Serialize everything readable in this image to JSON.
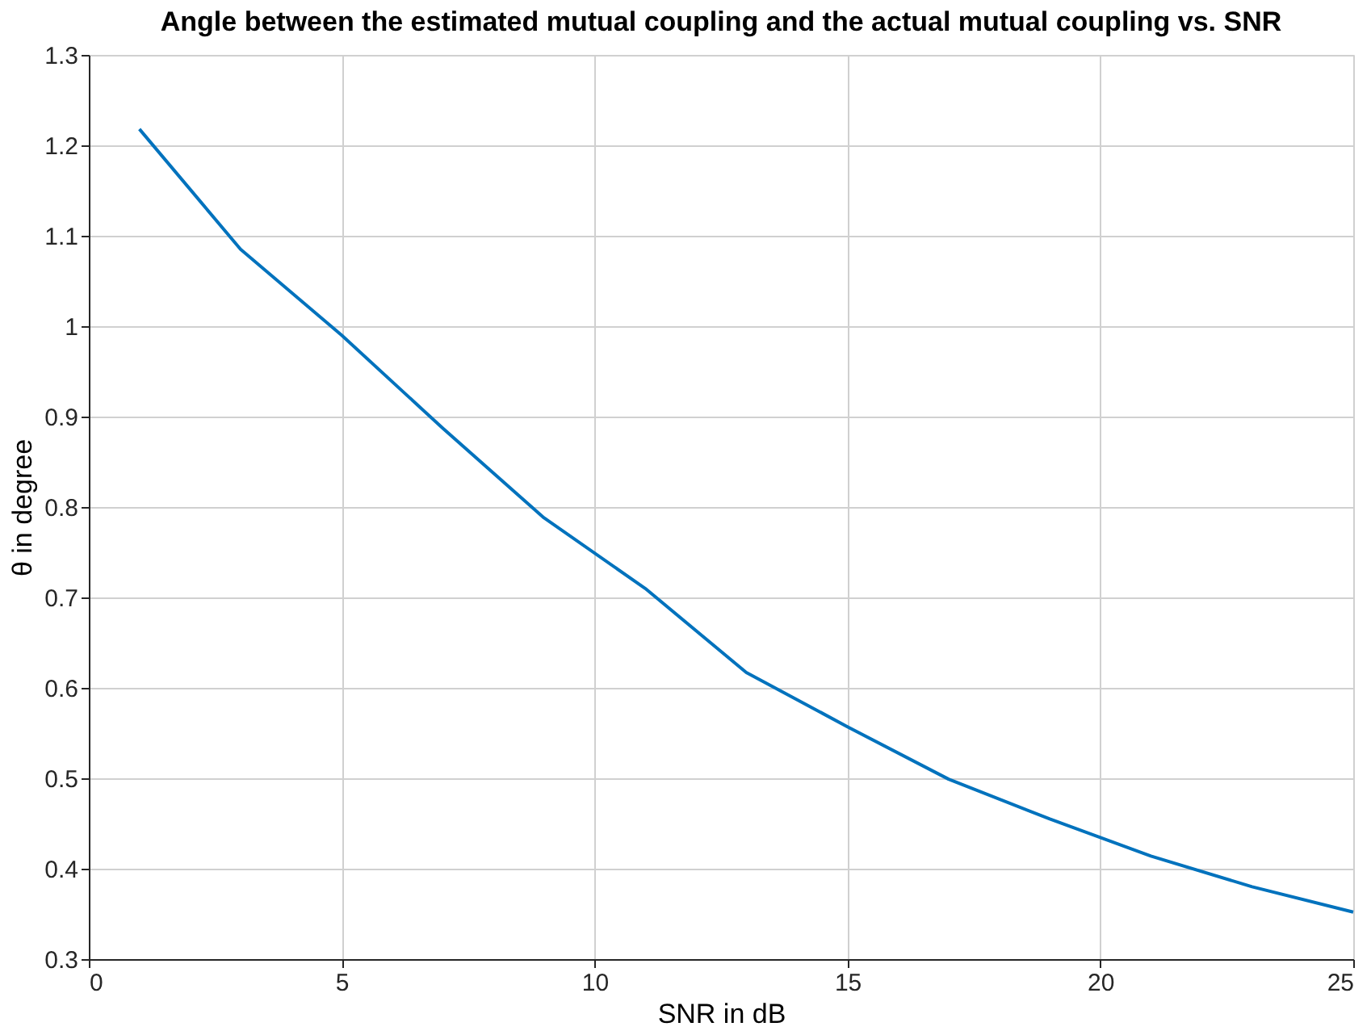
{
  "chart_data": {
    "type": "line",
    "title": "Angle between the estimated mutual coupling and the actual mutual coupling vs. SNR",
    "xlabel": "SNR in dB",
    "ylabel": "θ in degree",
    "x": [
      1,
      3,
      5,
      7,
      9,
      11,
      13,
      15,
      17,
      19,
      21,
      23,
      25
    ],
    "series": [
      {
        "color": "#0072bd",
        "values": [
          1.218,
          1.085,
          0.99,
          0.887,
          0.788,
          0.71,
          0.617,
          0.557,
          0.499,
          0.455,
          0.414,
          0.38,
          0.352
        ]
      }
    ],
    "xlim": [
      0,
      25
    ],
    "xticks": [
      0,
      5,
      10,
      15,
      20,
      25
    ],
    "ylim": [
      0.3,
      1.3
    ],
    "yticks": [
      0.3,
      0.4,
      0.5,
      0.6,
      0.7,
      0.8,
      0.9,
      1,
      1.1,
      1.2,
      1.3
    ],
    "grid": true,
    "marker": "none",
    "line_style": "solid"
  }
}
